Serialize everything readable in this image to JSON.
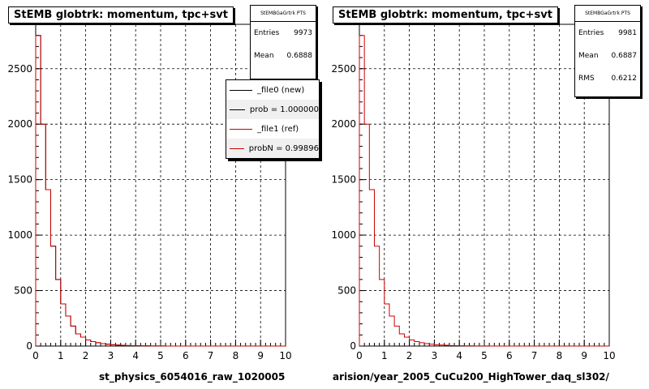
{
  "chart_data": [
    {
      "type": "histogram",
      "title": "StEMB globtrk: momentum, tpc+svt",
      "xlim": [
        0,
        10
      ],
      "ylim": [
        0,
        2900
      ],
      "xticks": [
        "0",
        "1",
        "2",
        "3",
        "4",
        "5",
        "6",
        "7",
        "8",
        "9",
        "10"
      ],
      "yticks": [
        "0",
        "500",
        "1000",
        "1500",
        "2000",
        "2500"
      ],
      "grid": true,
      "bin_width": 0.2,
      "series": [
        {
          "name": "_file0 (new)",
          "color": "#000000",
          "values": [
            2800,
            2000,
            1410,
            900,
            600,
            380,
            270,
            180,
            110,
            80,
            55,
            40,
            30,
            22,
            16,
            12,
            9,
            7,
            5,
            4,
            3,
            2,
            2,
            1,
            1,
            1,
            0,
            0,
            0,
            0,
            0,
            0,
            0,
            0,
            0,
            0,
            0,
            0,
            0,
            0,
            0,
            0,
            0,
            0,
            0,
            0,
            0,
            0,
            0,
            0
          ]
        },
        {
          "name": "_file1 (ref)",
          "color": "#cc0000",
          "values": [
            2800,
            2000,
            1410,
            900,
            600,
            380,
            270,
            180,
            110,
            80,
            55,
            40,
            30,
            22,
            16,
            12,
            9,
            7,
            5,
            4,
            3,
            2,
            2,
            1,
            1,
            1,
            0,
            0,
            0,
            0,
            0,
            0,
            0,
            0,
            0,
            0,
            0,
            0,
            0,
            0,
            0,
            0,
            0,
            0,
            0,
            0,
            0,
            0,
            0,
            0
          ]
        }
      ],
      "stats": {
        "header": "StEMBGaGrtrk PTS",
        "entries_label": "Entries",
        "entries": "9973",
        "mean_label": "Mean",
        "mean": "0.6888"
      },
      "legend": [
        "_file0 (new)",
        "prob = 1.000000",
        "_file1 (ref)",
        "probN = 0.99896"
      ],
      "footer": "st_physics_6054016_raw_1020005"
    },
    {
      "type": "histogram",
      "title": "StEMB globtrk: momentum, tpc+svt",
      "xlim": [
        0,
        10
      ],
      "ylim": [
        0,
        2900
      ],
      "xticks": [
        "0",
        "1",
        "2",
        "3",
        "4",
        "5",
        "6",
        "7",
        "8",
        "9",
        "10"
      ],
      "yticks": [
        "0",
        "500",
        "1000",
        "1500",
        "2000",
        "2500"
      ],
      "grid": true,
      "bin_width": 0.2,
      "series": [
        {
          "name": "",
          "color": "#cc0000",
          "values": [
            2800,
            2000,
            1410,
            900,
            600,
            380,
            270,
            180,
            110,
            80,
            55,
            40,
            30,
            22,
            16,
            12,
            9,
            7,
            5,
            4,
            3,
            2,
            2,
            1,
            1,
            1,
            0,
            0,
            0,
            0,
            0,
            0,
            0,
            0,
            0,
            0,
            0,
            0,
            0,
            0,
            0,
            0,
            0,
            0,
            0,
            0,
            0,
            0,
            0,
            0
          ]
        }
      ],
      "stats": {
        "header": "StEMBGaGrtrk PTS",
        "entries_label": "Entries",
        "entries": "9981",
        "mean_label": "Mean",
        "mean": "0.6887",
        "rms_label": "RMS",
        "rms": "0.6212"
      },
      "footer": "arision/year_2005_CuCu200_HighTower_daq_sl302/"
    }
  ]
}
